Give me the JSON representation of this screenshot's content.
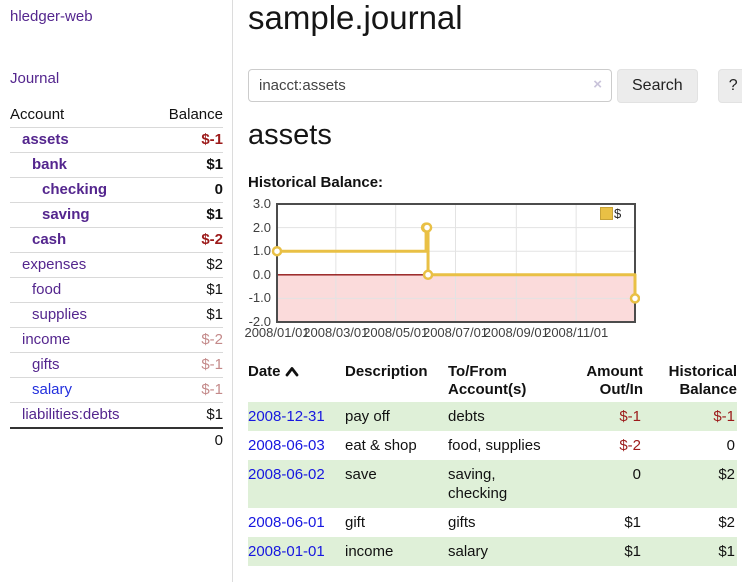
{
  "app": {
    "brand": "hledger-web"
  },
  "sidebar": {
    "journal_link": "Journal",
    "accounts": {
      "header_account": "Account",
      "header_balance": "Balance",
      "rows": [
        {
          "name": "assets",
          "balance": "$-1",
          "indent": 1,
          "bold": true,
          "balance_style": "neg-strong",
          "link_style": "visited"
        },
        {
          "name": "bank",
          "balance": "$1",
          "indent": 2,
          "bold": true,
          "balance_style": "",
          "link_style": "visited"
        },
        {
          "name": "checking",
          "balance": "0",
          "indent": 3,
          "bold": true,
          "balance_style": "",
          "link_style": "visited"
        },
        {
          "name": "saving",
          "balance": "$1",
          "indent": 3,
          "bold": true,
          "balance_style": "",
          "link_style": "visited"
        },
        {
          "name": "cash",
          "balance": "$-2",
          "indent": 2,
          "bold": true,
          "balance_style": "neg-strong",
          "link_style": "visited"
        },
        {
          "name": "expenses",
          "balance": "$2",
          "indent": 1,
          "bold": false,
          "balance_style": "",
          "link_style": "visited"
        },
        {
          "name": "food",
          "balance": "$1",
          "indent": 2,
          "bold": false,
          "balance_style": "",
          "link_style": "visited"
        },
        {
          "name": "supplies",
          "balance": "$1",
          "indent": 2,
          "bold": false,
          "balance_style": "",
          "link_style": "visited"
        },
        {
          "name": "income",
          "balance": "$-2",
          "indent": 1,
          "bold": false,
          "balance_style": "neg-soft",
          "link_style": "visited"
        },
        {
          "name": "gifts",
          "balance": "$-1",
          "indent": 2,
          "bold": false,
          "balance_style": "neg-soft",
          "link_style": "visited"
        },
        {
          "name": "salary",
          "balance": "$-1",
          "indent": 2,
          "bold": false,
          "balance_style": "neg-soft",
          "link_style": "unvisited"
        },
        {
          "name": "liabilities:debts",
          "balance": "$1",
          "indent": 1,
          "bold": false,
          "balance_style": "",
          "link_style": "visited"
        }
      ],
      "total": "0"
    }
  },
  "main": {
    "title": "sample.journal",
    "search": {
      "value": "inacct:assets",
      "clear_icon": "×",
      "search_button": "Search",
      "help_button": "?"
    },
    "account_heading": "assets",
    "chart_label": "Historical Balance:"
  },
  "chart_data": {
    "type": "line",
    "style": "steps",
    "title": "Historical Balance",
    "series": [
      {
        "name": "$",
        "color": "#e9c045",
        "points": [
          [
            "2008-01-01",
            1
          ],
          [
            "2008-06-01",
            2
          ],
          [
            "2008-06-02",
            2
          ],
          [
            "2008-06-03",
            0
          ],
          [
            "2008-12-31",
            -1
          ]
        ]
      }
    ],
    "x_range": [
      "2008-01-01",
      "2008-12-31"
    ],
    "ylim": [
      -2,
      3
    ],
    "y_ticks": [
      "3.0",
      "2.0",
      "1.0",
      "0.0",
      "-1.0",
      "-2.0"
    ],
    "x_ticks": [
      "2008/01/01",
      "2008/03/01",
      "2008/05/01",
      "2008/07/01",
      "2008/09/01",
      "2008/11/01"
    ],
    "legend": {
      "label": "$",
      "position": "top-right"
    },
    "grid": true,
    "colors": {
      "line": "#e9c045",
      "marker_fill": "#ffffff",
      "negative_region_fill": "#fbdbdb",
      "zero_line": "#8f1010",
      "border": "#4c4c4c",
      "gridline": "#e3e3e3"
    }
  },
  "register": {
    "headers": {
      "date": "Date",
      "description": "Description",
      "accounts_line1": "To/From",
      "accounts_line2": "Account(s)",
      "amount_line1": "Amount",
      "amount_line2": "Out/In",
      "balance_line1": "Historical",
      "balance_line2": "Balance"
    },
    "rows": [
      {
        "date": "2008-12-31",
        "description": "pay off",
        "accounts": "debts",
        "amount": "$-1",
        "balance": "$-1",
        "amount_negative": true,
        "balance_negative": true
      },
      {
        "date": "2008-06-03",
        "description": "eat & shop",
        "accounts": "food, supplies",
        "amount": "$-2",
        "balance": "0",
        "amount_negative": true,
        "balance_negative": false
      },
      {
        "date": "2008-06-02",
        "description": "save",
        "accounts": "saving, checking",
        "amount": "0",
        "balance": "$2",
        "amount_negative": false,
        "balance_negative": false
      },
      {
        "date": "2008-06-01",
        "description": "gift",
        "accounts": "gifts",
        "amount": "$1",
        "balance": "$2",
        "amount_negative": false,
        "balance_negative": false
      },
      {
        "date": "2008-01-01",
        "description": "income",
        "accounts": "salary",
        "amount": "$1",
        "balance": "$1",
        "amount_negative": false,
        "balance_negative": false
      }
    ]
  }
}
